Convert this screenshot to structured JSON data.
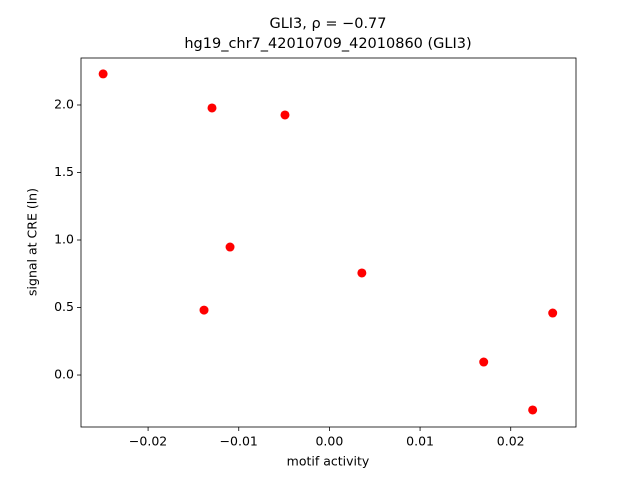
{
  "chart_data": {
    "type": "scatter",
    "title": "GLI3, ρ = −0.77",
    "subtitle": "hg19_chr7_42010709_42010860 (GLI3)",
    "x_label": "motif activity",
    "y_label": "signal at CRE (ln)",
    "color": "#ff0000",
    "x": [
      -0.02496,
      -0.01295,
      -0.0049,
      -0.01096,
      -0.01383,
      0.00358,
      0.01702,
      0.02463,
      0.02242
    ],
    "values": [
      2.23,
      1.978,
      1.926,
      0.948,
      0.481,
      0.756,
      0.096,
      0.459,
      -0.259
    ],
    "xlim": [
      -0.0274,
      0.0272
    ],
    "ylim": [
      -0.385,
      2.348
    ],
    "xticks": [
      {
        "value": -0.02,
        "label": "−0.02"
      },
      {
        "value": -0.01,
        "label": "−0.01"
      },
      {
        "value": 0,
        "label": "0.00"
      },
      0.01,
      0.02
    ],
    "yticks": [
      {
        "value": 0,
        "label": "0.0"
      },
      0.5,
      {
        "value": 1,
        "label": "1.0"
      },
      1.5,
      {
        "value": 2,
        "label": "2.0"
      }
    ]
  }
}
